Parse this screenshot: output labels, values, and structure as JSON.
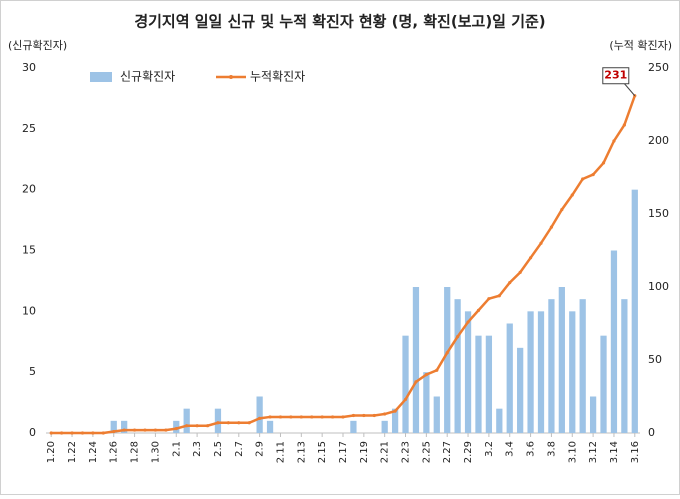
{
  "chart_data": {
    "type": "bar-line",
    "title": "경기지역 일일 신규 및 누적 확진자 현황 (명, 확진(보고)일 기준)",
    "y_label": "(신규확진자)",
    "y2_label": "(누적 확진자)",
    "categories": [
      "1.20",
      null,
      "1.22",
      null,
      "1.24",
      null,
      "1.26",
      null,
      "1.28",
      null,
      "1.30",
      null,
      "2.1",
      null,
      "2.3",
      null,
      "2.5",
      null,
      "2.7",
      null,
      "2.9",
      null,
      "2.11",
      null,
      "2.13",
      null,
      "2.15",
      null,
      "2.17",
      null,
      "2.19",
      null,
      "2.21",
      null,
      "2.23",
      null,
      "2.25",
      null,
      "2.27",
      null,
      "2.29",
      null,
      "3.2",
      null,
      "3.4",
      null,
      "3.6",
      null,
      "3.8",
      null,
      "3.10",
      null,
      "3.12",
      null,
      "3.14",
      null,
      "3.16"
    ],
    "series": [
      {
        "name": "신규확진자",
        "type": "bar",
        "color": "#9dc3e6",
        "axis": "y",
        "values": [
          0,
          0,
          0,
          0,
          0,
          0,
          1,
          1,
          0,
          0,
          0,
          0,
          1,
          2,
          0,
          0,
          2,
          0,
          0,
          0,
          3,
          1,
          0,
          0,
          0,
          0,
          0,
          0,
          0,
          1,
          0,
          0,
          1,
          2,
          8,
          12,
          5,
          3,
          12,
          11,
          10,
          8,
          8,
          2,
          9,
          7,
          10,
          10,
          11,
          12,
          10,
          11,
          3,
          8,
          15,
          11,
          20
        ]
      },
      {
        "name": "누적확진자",
        "type": "line",
        "color": "#ed7d31",
        "axis": "y2",
        "values": [
          0,
          0,
          0,
          0,
          0,
          0,
          1,
          2,
          2,
          2,
          2,
          2,
          3,
          5,
          5,
          5,
          7,
          7,
          7,
          7,
          10,
          11,
          11,
          11,
          11,
          11,
          11,
          11,
          11,
          12,
          12,
          12,
          13,
          15,
          23,
          35,
          40,
          43,
          55,
          66,
          76,
          84,
          92,
          94,
          103,
          110,
          120,
          130,
          141,
          153,
          163,
          174,
          177,
          185,
          200,
          211,
          231
        ]
      }
    ],
    "ylim": [
      0,
      30
    ],
    "yticks": [
      0,
      5,
      10,
      15,
      20,
      25,
      30
    ],
    "y2lim": [
      0,
      250
    ],
    "y2ticks": [
      0,
      50,
      100,
      150,
      200,
      250
    ],
    "legend": "top-left",
    "grid": false
  }
}
